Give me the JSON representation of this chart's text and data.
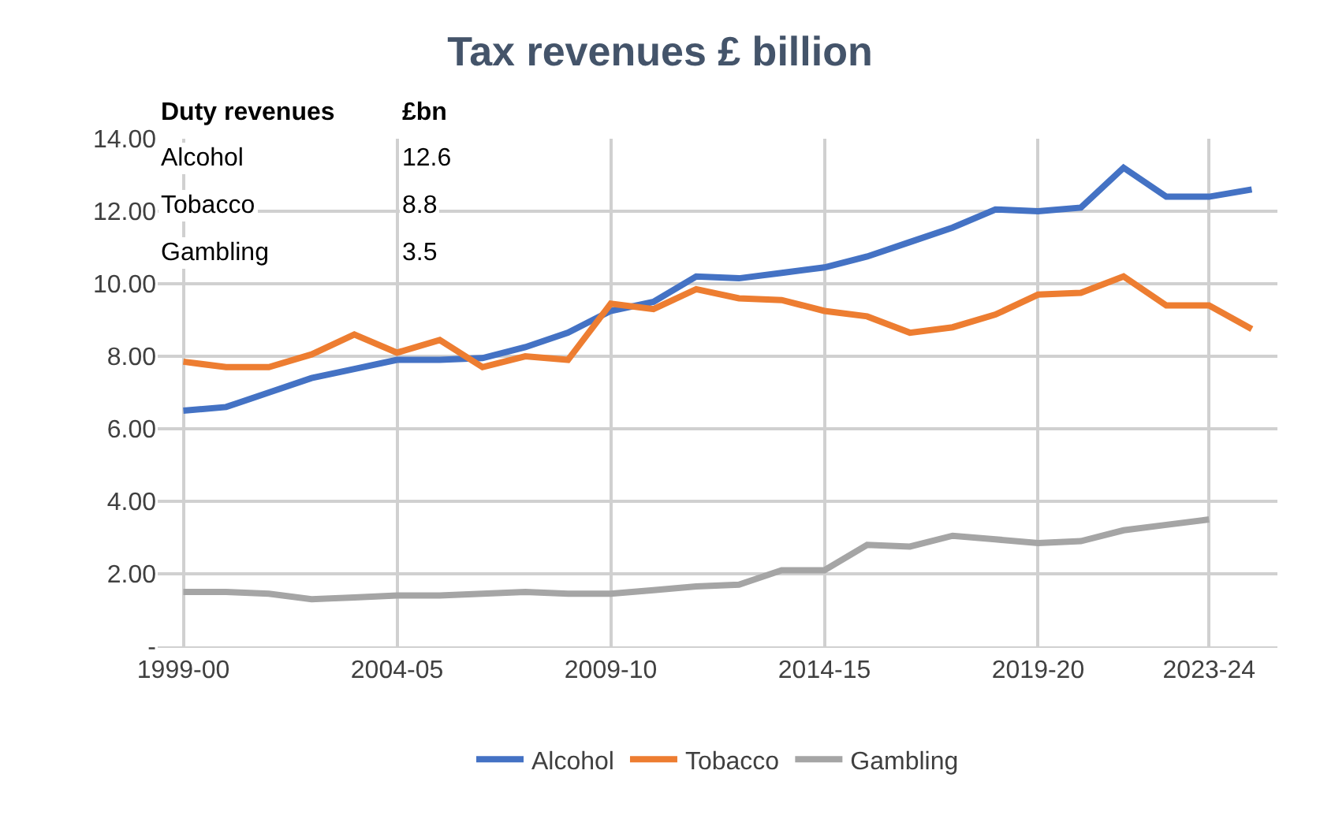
{
  "chart_data": {
    "type": "line",
    "title": "Tax revenues £ billion",
    "categories": [
      "1999-00",
      null,
      null,
      null,
      null,
      "2004-05",
      null,
      null,
      null,
      null,
      "2009-10",
      null,
      null,
      null,
      null,
      "2014-15",
      null,
      null,
      null,
      null,
      "2019-20",
      null,
      null,
      null,
      "2023-24",
      null
    ],
    "series": [
      {
        "name": "Alcohol",
        "color": "#4472c4",
        "values": [
          6.5,
          6.6,
          7.0,
          7.4,
          7.65,
          7.9,
          7.9,
          7.95,
          8.25,
          8.65,
          9.25,
          9.5,
          10.2,
          10.15,
          10.3,
          10.45,
          10.75,
          11.15,
          11.55,
          12.05,
          12.0,
          12.1,
          13.2,
          12.4,
          12.4,
          12.6
        ]
      },
      {
        "name": "Tobacco",
        "color": "#ed7d31",
        "values": [
          7.85,
          7.7,
          7.7,
          8.05,
          8.6,
          8.1,
          8.45,
          7.7,
          8.0,
          7.9,
          9.45,
          9.3,
          9.85,
          9.6,
          9.55,
          9.25,
          9.1,
          8.65,
          8.8,
          9.15,
          9.7,
          9.75,
          10.2,
          9.4,
          9.4,
          8.75
        ]
      },
      {
        "name": "Gambling",
        "color": "#a5a5a5",
        "values": [
          1.5,
          1.5,
          1.45,
          1.3,
          1.35,
          1.4,
          1.4,
          1.45,
          1.5,
          1.45,
          1.45,
          1.55,
          1.65,
          1.7,
          2.1,
          2.1,
          2.8,
          2.75,
          3.05,
          2.95,
          2.85,
          2.9,
          3.2,
          3.35,
          3.5,
          null
        ]
      }
    ],
    "ylim": [
      0,
      14
    ],
    "yticks": [
      {
        "value": 0,
        "label": "-"
      },
      {
        "value": 2,
        "label": "2.00"
      },
      {
        "value": 4,
        "label": "4.00"
      },
      {
        "value": 6,
        "label": "6.00"
      },
      {
        "value": 8,
        "label": "8.00"
      },
      {
        "value": 10,
        "label": "10.00"
      },
      {
        "value": 12,
        "label": "12.00"
      },
      {
        "value": 14,
        "label": "14.00"
      }
    ],
    "grid": true,
    "legend": "bottom",
    "marker": "none",
    "line_style": "solid",
    "annotations": [
      "Duty revenues",
      "£bn",
      "Alcohol",
      "12.6",
      "Tobacco",
      "8.8",
      "Gambling",
      "3.5"
    ]
  }
}
